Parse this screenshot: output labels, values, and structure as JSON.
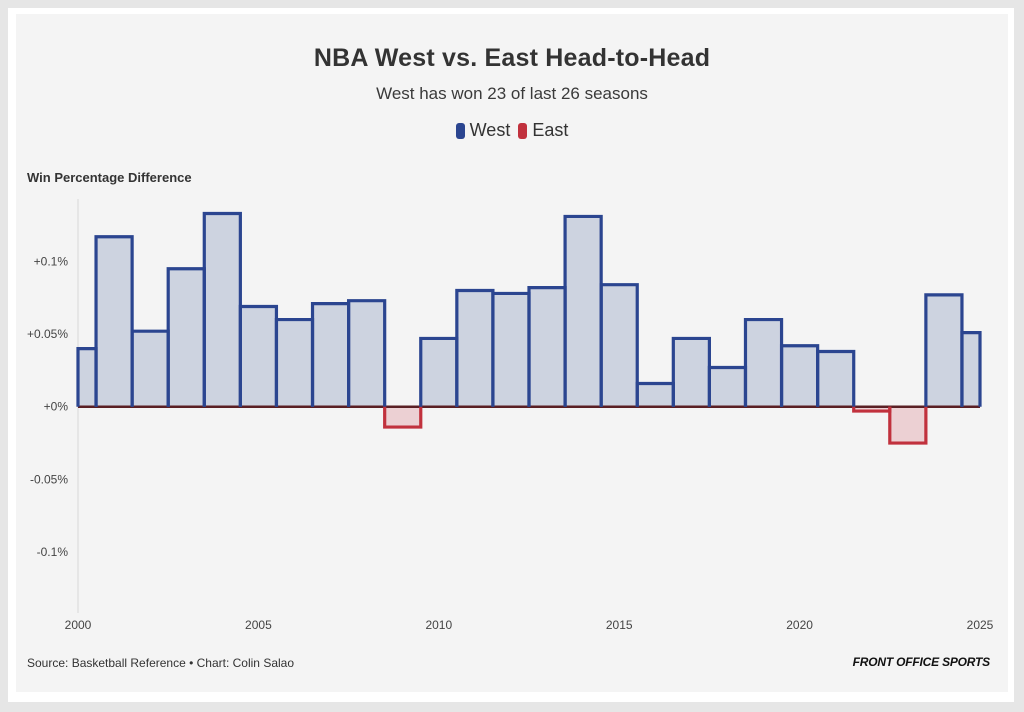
{
  "chart_data": {
    "type": "step-area",
    "title": "NBA West vs. East Head-to-Head",
    "subtitle": "West has won 23 of last 26 seasons",
    "ylabel": "Win Percentage Difference",
    "legend": [
      {
        "name": "West",
        "color": "#2b4590"
      },
      {
        "name": "East",
        "color": "#c1313d"
      }
    ],
    "x": [
      2000,
      2001,
      2002,
      2003,
      2004,
      2005,
      2006,
      2007,
      2008,
      2009,
      2010,
      2011,
      2012,
      2013,
      2014,
      2015,
      2016,
      2017,
      2018,
      2019,
      2020,
      2021,
      2022,
      2023,
      2024,
      2025
    ],
    "values": [
      0.04,
      0.117,
      0.052,
      0.095,
      0.133,
      0.069,
      0.06,
      0.071,
      0.073,
      -0.014,
      0.047,
      0.08,
      0.078,
      0.082,
      0.131,
      0.084,
      0.016,
      0.047,
      0.027,
      0.06,
      0.042,
      0.038,
      -0.003,
      -0.025,
      0.077,
      0.051
    ],
    "ylim": [
      -0.142,
      0.143
    ],
    "xlim": [
      2000,
      2025
    ],
    "yticks": [
      {
        "value": 0.1,
        "label": "+0.1%"
      },
      {
        "value": 0.05,
        "label": "+0.05%"
      },
      {
        "value": 0,
        "label": "+0%"
      },
      {
        "value": -0.05,
        "label": "-0.05%"
      },
      {
        "value": -0.1,
        "label": "-0.1%"
      }
    ],
    "xticks": [
      {
        "value": 2000,
        "label": "2000"
      },
      {
        "value": 2005,
        "label": "2005"
      },
      {
        "value": 2010,
        "label": "2010"
      },
      {
        "value": 2015,
        "label": "2015"
      },
      {
        "value": 2020,
        "label": "2020"
      },
      {
        "value": 2025,
        "label": "2025"
      }
    ],
    "colors": {
      "west_line": "#2b4590",
      "west_fill": "#cdd3e0",
      "east_line": "#c1313d",
      "east_fill": "#ecd0d3",
      "zero_line": "#5a1f24"
    }
  },
  "footer": {
    "source": "Source: Basketball Reference • Chart: Colin Salao",
    "brand": "FRONT OFFICE SPORTS"
  }
}
